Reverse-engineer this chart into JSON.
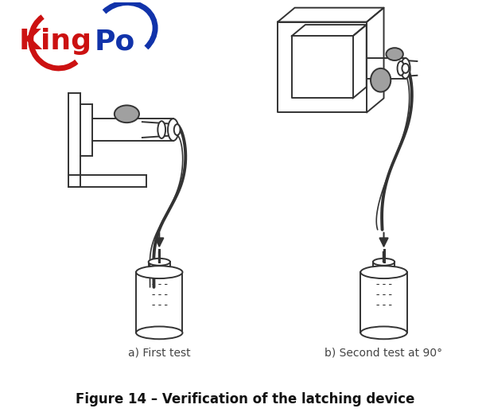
{
  "title": "Figure 14 – Verification of the latching device",
  "label_a": "a) First test",
  "label_b": "b) Second test at 90°",
  "logo_king": "King",
  "logo_po": "Po",
  "logo_king_color": "#cc1111",
  "logo_po_color": "#1133aa",
  "logo_red_color": "#cc1111",
  "logo_blue_color": "#1133aa",
  "bg_color": "#ffffff",
  "line_color": "#333333",
  "gray_color": "#a0a0a0",
  "title_fontsize": 12,
  "label_fontsize": 10,
  "logo_fontsize": 26,
  "fig_width": 6.06,
  "fig_height": 5.28,
  "dpi": 100
}
